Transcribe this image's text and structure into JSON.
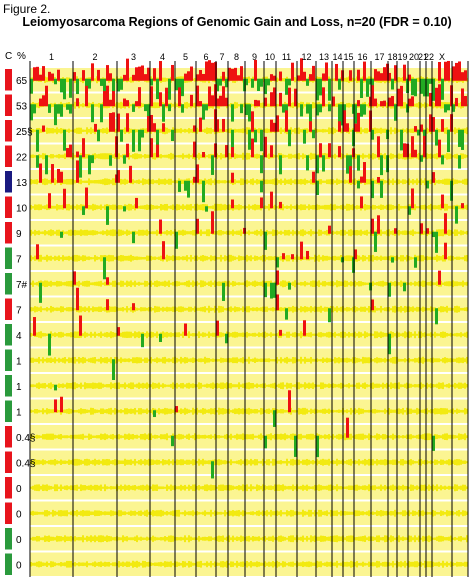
{
  "figure_label": "Figure 2.",
  "title": "Leiomyosarcoma Regions of Genomic Gain and Loss, n=20 (FDR = 0.10)",
  "column_headers": {
    "cluster": "C",
    "percent": "%"
  },
  "colors": {
    "gain": "#ee1111",
    "loss": "#22aa22",
    "neutral": "#f2ea10",
    "neutral_light": "#fbf592",
    "cluster_red": "#e8141c",
    "cluster_green": "#2a9a3c",
    "cluster_navy": "#1a1a80",
    "boundary": "#000000"
  },
  "chart_data": {
    "type": "heatmap",
    "chromosomes": [
      "1",
      "2",
      "3",
      "4",
      "5",
      "6",
      "7",
      "8",
      "9",
      "10",
      "11",
      "12",
      "13",
      "14",
      "15",
      "16",
      "17",
      "18",
      "19",
      "20",
      "21",
      "22",
      "X"
    ],
    "clusters": [
      {
        "color": "red",
        "percent": "65",
        "density": 0.95
      },
      {
        "color": "red",
        "percent": "53",
        "density": 0.85
      },
      {
        "color": "red",
        "percent": "25§",
        "density": 0.45
      },
      {
        "color": "red",
        "percent": "22",
        "density": 0.38
      },
      {
        "color": "navy",
        "percent": "13",
        "density": 0.2
      },
      {
        "color": "red",
        "percent": "10",
        "density": 0.16
      },
      {
        "color": "red",
        "percent": "9",
        "density": 0.14
      },
      {
        "color": "green",
        "percent": "7",
        "density": 0.1
      },
      {
        "color": "green",
        "percent": "7#",
        "density": 0.1
      },
      {
        "color": "red",
        "percent": "7",
        "density": 0.1
      },
      {
        "color": "green",
        "percent": "4",
        "density": 0.07
      },
      {
        "color": "green",
        "percent": "1",
        "density": 0.04
      },
      {
        "color": "green",
        "percent": "1",
        "density": 0.04
      },
      {
        "color": "green",
        "percent": "1",
        "density": 0.04
      },
      {
        "color": "red",
        "percent": "0.4§",
        "density": 0.02
      },
      {
        "color": "red",
        "percent": "0.4§",
        "density": 0.02
      },
      {
        "color": "red",
        "percent": "0",
        "density": 0.0
      },
      {
        "color": "red",
        "percent": "0",
        "density": 0.0
      },
      {
        "color": "green",
        "percent": "0",
        "density": 0.0
      },
      {
        "color": "green",
        "percent": "0",
        "density": 0.0
      }
    ]
  }
}
